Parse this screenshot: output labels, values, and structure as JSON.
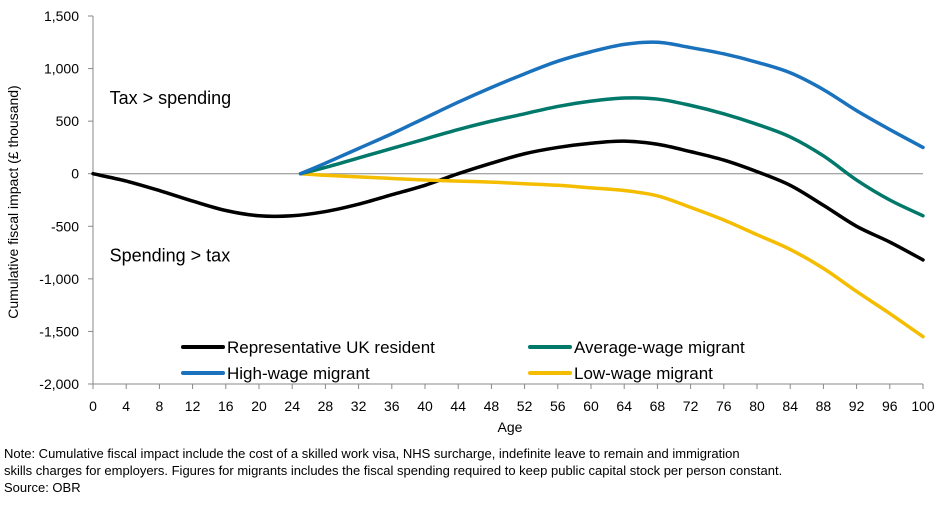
{
  "chart_data": {
    "type": "line",
    "xlabel": "Age",
    "ylabel": "Cumulative fiscal impact (£ thousand)",
    "xlim": [
      0,
      100
    ],
    "ylim": [
      -2000,
      1500
    ],
    "x_ticks": [
      "0",
      "4",
      "8",
      "12",
      "16",
      "20",
      "24",
      "28",
      "32",
      "36",
      "40",
      "44",
      "48",
      "52",
      "56",
      "60",
      "64",
      "68",
      "72",
      "76",
      "80",
      "84",
      "88",
      "92",
      "96",
      "100"
    ],
    "y_ticks": [
      "1,500",
      "1,000",
      "500",
      "0",
      "-500",
      "-1,000",
      "-1,500",
      "-2,000"
    ],
    "y_tick_values": [
      1500,
      1000,
      500,
      0,
      -500,
      -1000,
      -1500,
      -2000
    ],
    "grid": false,
    "annotations": [
      {
        "text": "Tax > spending",
        "x": 2,
        "y": 720
      },
      {
        "text": "Spending > tax",
        "x": 2,
        "y": -780
      }
    ],
    "legend": [
      {
        "name": "Representative UK resident",
        "color": "#000000"
      },
      {
        "name": "Average-wage migrant",
        "color": "#00786a"
      },
      {
        "name": "High-wage migrant",
        "color": "#1a72bd"
      },
      {
        "name": "Low-wage migrant",
        "color": "#f5bd00"
      }
    ],
    "legend_placement": "bottom-center",
    "series": [
      {
        "name": "Representative UK resident",
        "color": "#000000",
        "x": [
          0,
          4,
          8,
          12,
          16,
          20,
          24,
          28,
          32,
          36,
          40,
          44,
          48,
          52,
          56,
          60,
          64,
          68,
          72,
          76,
          80,
          84,
          88,
          92,
          96,
          100
        ],
        "values": [
          0,
          -70,
          -160,
          -260,
          -350,
          -400,
          -400,
          -360,
          -290,
          -200,
          -110,
          0,
          100,
          190,
          250,
          290,
          310,
          280,
          210,
          130,
          20,
          -110,
          -300,
          -500,
          -650,
          -820
        ]
      },
      {
        "name": "Average-wage migrant",
        "color": "#00786a",
        "x": [
          25,
          28,
          32,
          36,
          40,
          44,
          48,
          52,
          56,
          60,
          64,
          68,
          72,
          76,
          80,
          84,
          88,
          92,
          96,
          100
        ],
        "values": [
          0,
          60,
          150,
          240,
          330,
          420,
          500,
          570,
          640,
          690,
          720,
          710,
          650,
          570,
          470,
          350,
          170,
          -60,
          -250,
          -400
        ]
      },
      {
        "name": "High-wage migrant",
        "color": "#1a72bd",
        "x": [
          25,
          28,
          32,
          36,
          40,
          44,
          48,
          52,
          56,
          60,
          64,
          68,
          72,
          76,
          80,
          84,
          88,
          92,
          96,
          100
        ],
        "values": [
          0,
          100,
          240,
          380,
          530,
          680,
          820,
          950,
          1070,
          1160,
          1230,
          1250,
          1200,
          1140,
          1060,
          960,
          800,
          600,
          420,
          250
        ]
      },
      {
        "name": "Low-wage migrant",
        "color": "#f5bd00",
        "x": [
          25,
          28,
          32,
          36,
          40,
          44,
          48,
          52,
          56,
          60,
          64,
          68,
          72,
          76,
          80,
          84,
          88,
          92,
          96,
          100
        ],
        "values": [
          0,
          -15,
          -30,
          -45,
          -60,
          -70,
          -80,
          -95,
          -110,
          -135,
          -160,
          -210,
          -320,
          -440,
          -580,
          -720,
          -900,
          -1120,
          -1330,
          -1550
        ]
      }
    ]
  },
  "note": {
    "line1": "Note: Cumulative fiscal impact include the cost of a skilled work visa, NHS surcharge, indefinite leave to remain and immigration",
    "line2": "skills charges for employers. Figures for migrants includes the fiscal spending required to keep public capital stock per person constant.",
    "source": "Source: OBR"
  }
}
